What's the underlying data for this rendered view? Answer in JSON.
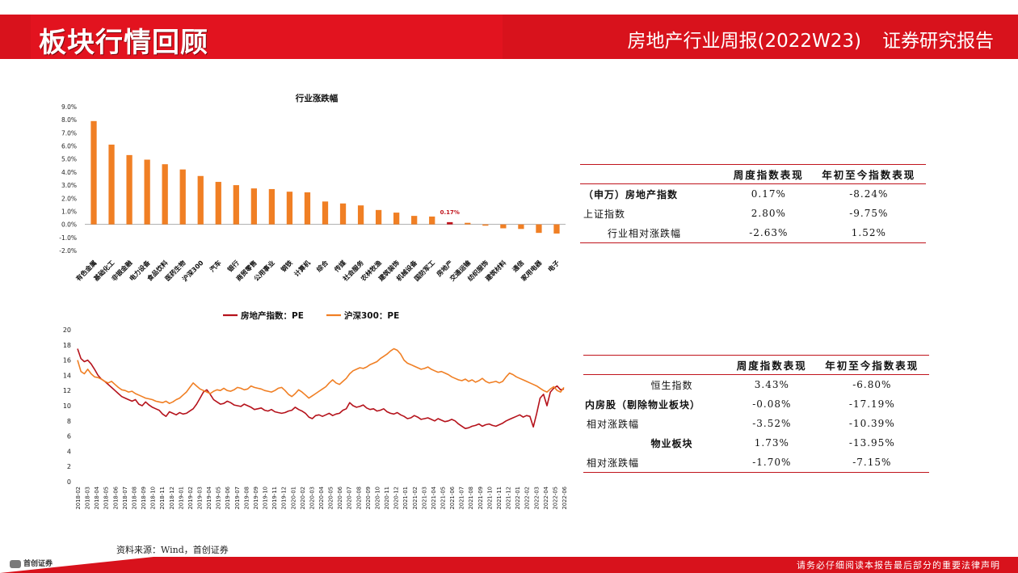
{
  "header": {
    "section_title": "板块行情回顾",
    "report_title": "房地产行业周报(2022W23)",
    "report_type": "证券研究报告"
  },
  "footer": {
    "legal_notice": "请务必仔细阅读本报告最后部分的重要法律声明",
    "logo_text": "首创证券"
  },
  "source_note": "资料来源：Wind，首创证券",
  "colors": {
    "brand_red": "#d8121c",
    "bar_orange": "#f07f24",
    "pe_red": "#b5121b",
    "pe_orange": "#f07f24"
  },
  "chart_data": [
    {
      "type": "bar",
      "title": "行业涨跌幅",
      "categories": [
        "有色金属",
        "基础化工",
        "非银金融",
        "电力设备",
        "食品饮料",
        "医药生物",
        "沪深300",
        "汽车",
        "银行",
        "商贸零售",
        "公用事业",
        "钢铁",
        "计算机",
        "综合",
        "传媒",
        "社会服务",
        "农林牧渔",
        "建筑装饰",
        "机械设备",
        "国防军工",
        "房地产",
        "交通运输",
        "纺织服饰",
        "建筑材料",
        "通信",
        "家用电器",
        "电子"
      ],
      "values": [
        7.9,
        6.1,
        5.3,
        4.95,
        4.6,
        4.2,
        3.7,
        3.25,
        3.0,
        2.75,
        2.7,
        2.5,
        2.45,
        1.75,
        1.6,
        1.45,
        1.1,
        0.9,
        0.65,
        0.6,
        0.17,
        0.12,
        -0.1,
        -0.3,
        -0.35,
        -0.65,
        -0.7
      ],
      "highlight": {
        "category": "房地产",
        "label": "0.17%"
      },
      "ylim": [
        -2.0,
        9.0
      ],
      "y_ticks": [
        "-2.0%",
        "-1.0%",
        "0.0%",
        "1.0%",
        "2.0%",
        "3.0%",
        "4.0%",
        "5.0%",
        "6.0%",
        "7.0%",
        "8.0%",
        "9.0%"
      ],
      "grid": false
    },
    {
      "type": "line",
      "legend": "top",
      "series": [
        {
          "name": "房地产指数：PE",
          "color": "#b5121b",
          "values": [
            17.5,
            16.2,
            15.8,
            16.0,
            15.5,
            14.8,
            14.0,
            13.5,
            13.2,
            12.8,
            12.4,
            12.0,
            11.6,
            11.2,
            11.0,
            10.8,
            10.6,
            10.8,
            10.2,
            10.0,
            10.5,
            10.1,
            9.8,
            9.6,
            9.4,
            8.9,
            8.6,
            9.2,
            9.0,
            8.8,
            9.1,
            8.9,
            9.0,
            9.3,
            9.6,
            10.2,
            11.0,
            11.8,
            12.1,
            11.5,
            10.8,
            10.5,
            10.2,
            10.3,
            10.6,
            10.4,
            10.1,
            10.0,
            9.9,
            10.2,
            10.0,
            9.8,
            9.5,
            9.6,
            9.7,
            9.4,
            9.3,
            9.5,
            9.2,
            9.1,
            9.0,
            9.1,
            9.3,
            9.4,
            9.8,
            9.5,
            9.3,
            9.0,
            8.5,
            8.3,
            8.7,
            8.8,
            8.6,
            8.8,
            9.0,
            8.7,
            8.9,
            9.0,
            9.4,
            9.6,
            10.4,
            10.0,
            9.8,
            9.9,
            10.1,
            9.7,
            9.5,
            9.6,
            9.3,
            9.4,
            9.6,
            9.2,
            9.0,
            8.9,
            9.1,
            8.8,
            8.6,
            8.3,
            8.4,
            8.7,
            8.5,
            8.2,
            8.3,
            8.4,
            8.2,
            8.0,
            8.3,
            8.1,
            7.9,
            8.0,
            8.2,
            8.0,
            7.6,
            7.3,
            7.0,
            7.1,
            7.3,
            7.4,
            7.6,
            7.3,
            7.5,
            7.6,
            7.4,
            7.3,
            7.5,
            7.7,
            8.0,
            8.2,
            8.4,
            8.6,
            8.8,
            8.5,
            8.7,
            8.6,
            7.2,
            9.0,
            11.0,
            11.5,
            10.0,
            11.8,
            12.3,
            12.6,
            12.1,
            12.2
          ]
        },
        {
          "name": "沪深300：PE",
          "color": "#f07f24",
          "values": [
            16.0,
            14.5,
            14.2,
            14.8,
            14.2,
            13.8,
            13.7,
            13.5,
            13.2,
            13.0,
            13.2,
            12.8,
            12.4,
            12.1,
            12.0,
            11.8,
            11.9,
            11.6,
            11.4,
            11.2,
            11.0,
            10.9,
            10.8,
            10.6,
            10.5,
            10.4,
            10.6,
            10.3,
            10.5,
            10.8,
            11.0,
            11.4,
            11.8,
            12.4,
            13.0,
            12.6,
            12.2,
            12.0,
            11.8,
            11.6,
            11.9,
            12.1,
            12.0,
            12.3,
            12.0,
            11.9,
            12.1,
            12.4,
            12.3,
            12.1,
            12.2,
            12.6,
            12.4,
            12.3,
            12.2,
            12.0,
            11.9,
            11.8,
            12.0,
            12.3,
            12.4,
            12.0,
            11.5,
            11.2,
            11.6,
            12.1,
            11.8,
            11.4,
            11.0,
            11.3,
            11.6,
            11.9,
            12.2,
            12.5,
            13.0,
            13.4,
            13.0,
            12.8,
            13.2,
            13.6,
            14.2,
            14.6,
            14.8,
            15.0,
            14.9,
            15.1,
            15.4,
            15.6,
            15.8,
            16.2,
            16.5,
            16.8,
            17.2,
            17.5,
            17.3,
            16.8,
            16.0,
            15.6,
            15.4,
            15.2,
            15.0,
            14.8,
            14.9,
            15.1,
            14.8,
            14.6,
            14.4,
            14.5,
            14.3,
            14.1,
            13.8,
            13.6,
            13.4,
            13.3,
            13.5,
            13.2,
            13.4,
            13.1,
            13.3,
            13.6,
            13.2,
            13.0,
            13.1,
            13.2,
            13.0,
            13.2,
            13.8,
            14.3,
            14.1,
            13.8,
            13.6,
            13.4,
            13.2,
            13.0,
            12.8,
            12.6,
            12.3,
            12.0,
            11.8,
            12.2,
            12.5,
            12.0,
            11.8,
            12.4
          ]
        }
      ],
      "x_ticks": [
        "2018-02",
        "2018-03",
        "2018-04",
        "2018-05",
        "2018-06",
        "2018-07",
        "2018-08",
        "2018-09",
        "2018-10",
        "2018-11",
        "2018-12",
        "2019-01",
        "2019-02",
        "2019-03",
        "2019-04",
        "2019-05",
        "2019-06",
        "2019-07",
        "2019-08",
        "2019-09",
        "2019-10",
        "2019-11",
        "2019-12",
        "2020-01",
        "2020-02",
        "2020-03",
        "2020-04",
        "2020-05",
        "2020-06",
        "2020-07",
        "2020-08",
        "2020-09",
        "2020-10",
        "2020-11",
        "2020-12",
        "2021-01",
        "2021-02",
        "2021-03",
        "2021-04",
        "2021-05",
        "2021-06",
        "2021-07",
        "2021-08",
        "2021-09",
        "2021-10",
        "2021-11",
        "2021-12",
        "2022-01",
        "2022-02",
        "2022-03",
        "2022-04",
        "2022-05",
        "2022-06"
      ],
      "ylim": [
        0,
        20
      ],
      "y_ticks": [
        "0",
        "2",
        "4",
        "6",
        "8",
        "10",
        "12",
        "14",
        "16",
        "18",
        "20"
      ],
      "grid": false
    }
  ],
  "table1": {
    "headers": [
      "",
      "周度指数表现",
      "年初至今指数表现"
    ],
    "rows": [
      {
        "label": "（申万）房地产指数",
        "weekly": "0.17%",
        "ytd": "-8.24%"
      },
      {
        "label": "上证指数",
        "weekly": "2.80%",
        "ytd": "-9.75%"
      },
      {
        "label": "行业相对涨跌幅",
        "weekly": "-2.63%",
        "ytd": "1.52%"
      }
    ]
  },
  "table2": {
    "headers": [
      "",
      "周度指数表现",
      "年初至今指数表现"
    ],
    "rows": [
      {
        "label": "恒生指数",
        "weekly": "3.43%",
        "ytd": "-6.80%"
      },
      {
        "label": "内房股（剔除物业板块）",
        "weekly": "-0.08%",
        "ytd": "-17.19%"
      },
      {
        "label": "相对涨跌幅",
        "weekly": "-3.52%",
        "ytd": "-10.39%"
      },
      {
        "label": "物业板块",
        "weekly": "1.73%",
        "ytd": "-13.95%"
      },
      {
        "label": "相对涨跌幅",
        "weekly": "-1.70%",
        "ytd": "-7.15%"
      }
    ]
  }
}
